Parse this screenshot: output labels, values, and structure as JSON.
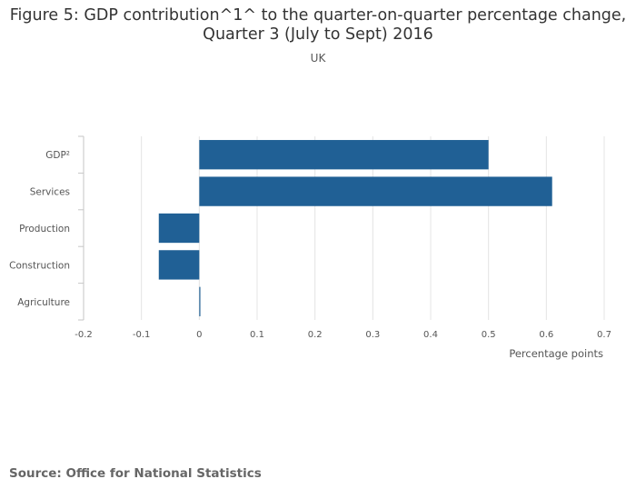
{
  "chart_data": {
    "type": "bar",
    "orientation": "horizontal",
    "title": "Figure 5: GDP contribution^1^ to the quarter-on-quarter percentage change, Quarter 3 (July to Sept) 2016",
    "subtitle": "UK",
    "categories": [
      "GDP²",
      "Services",
      "Production",
      "Construction",
      "Agriculture"
    ],
    "values": [
      0.5,
      0.61,
      -0.07,
      -0.07,
      0.0
    ],
    "xlabel": "Percentage points",
    "ylabel": "",
    "xlim": [
      -0.2,
      0.7
    ],
    "xticks": [
      "-0.2",
      "-0.1",
      "0",
      "0.1",
      "0.2",
      "0.3",
      "0.4",
      "0.5",
      "0.6",
      "0.7"
    ],
    "grid": true,
    "legend": "none",
    "bar_color": "#206095"
  },
  "source": "Source: Office for National Statistics"
}
